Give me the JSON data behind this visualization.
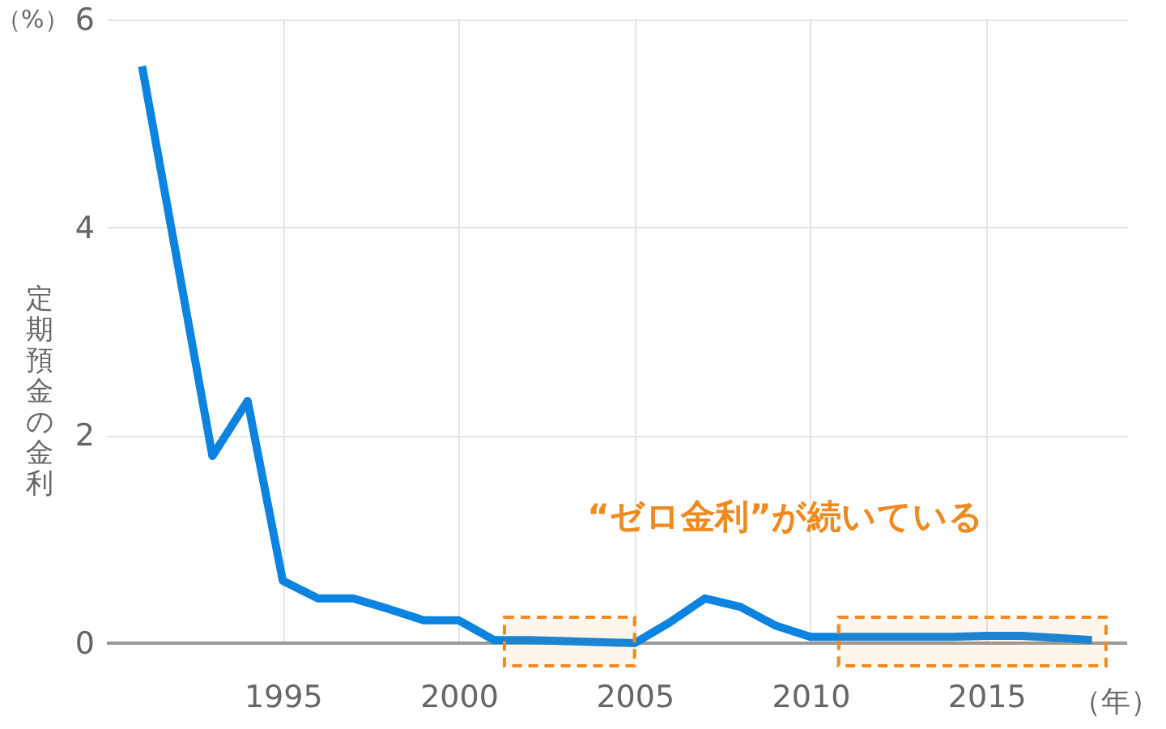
{
  "chart_data": {
    "type": "line",
    "xlabel": "（年）",
    "ylabel": "定期預金の金利",
    "x": [
      1991,
      1993,
      1994,
      1995,
      1996,
      1997,
      1998,
      1999,
      2000,
      2001,
      2002,
      2003,
      2004,
      2005,
      2006,
      2007,
      2008,
      2009,
      2010,
      2011,
      2012,
      2013,
      2014,
      2015,
      2016,
      2017,
      2018
    ],
    "series": [
      {
        "color": "#0a84e0",
        "values": [
          5.55,
          1.8,
          2.33,
          0.6,
          0.43,
          0.43,
          0.33,
          0.22,
          0.22,
          0.03,
          0.03,
          0.02,
          0.01,
          0.0,
          0.2,
          0.43,
          0.35,
          0.17,
          0.06,
          0.06,
          0.06,
          0.06,
          0.06,
          0.07,
          0.07,
          0.05,
          0.03
        ]
      }
    ],
    "xlim": [
      1990,
      2019
    ],
    "ylim": [
      0,
      6
    ],
    "xticks": [
      1995,
      2000,
      2005,
      2010,
      2015
    ],
    "yticks": [
      0,
      2,
      4,
      6
    ],
    "grid": true,
    "bands": [
      {
        "axis": "x",
        "from": 2001.3,
        "to": 2005,
        "color": "#f08a1e"
      },
      {
        "axis": "x",
        "from": 2010.8,
        "to": 2018.4,
        "color": "#f08a1e"
      }
    ],
    "annotations": [
      "（%）",
      "“ゼロ金利”が続いている"
    ],
    "marker": "none",
    "line_style": "solid"
  }
}
